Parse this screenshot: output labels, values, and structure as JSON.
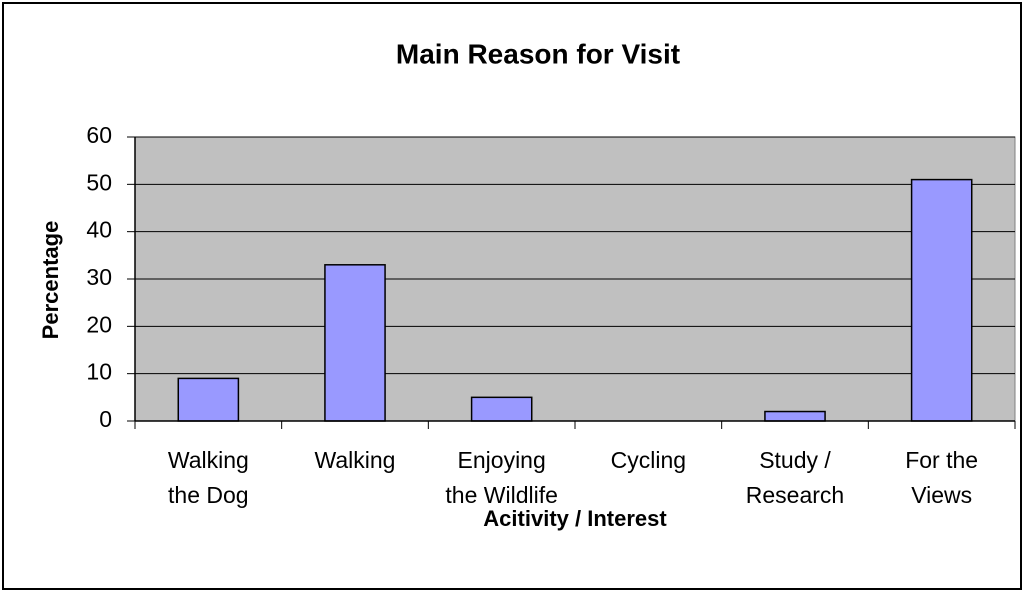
{
  "chart_data": {
    "type": "bar",
    "title": "Main Reason for Visit",
    "x_label": "Acitivity / Interest",
    "y_label": "Percentage",
    "categories": [
      "Walking\nthe Dog",
      "Walking",
      "Enjoying\nthe Wildlife",
      "Cycling",
      "Study /\nResearch",
      "For the\nViews"
    ],
    "values": [
      9,
      33,
      5,
      0,
      2,
      51
    ],
    "color": "#9999ff",
    "ylim": [
      0,
      60
    ],
    "yticks": [
      0,
      10,
      20,
      30,
      40,
      50,
      60
    ],
    "grid": true,
    "plot_background": "#c0c0c0"
  }
}
